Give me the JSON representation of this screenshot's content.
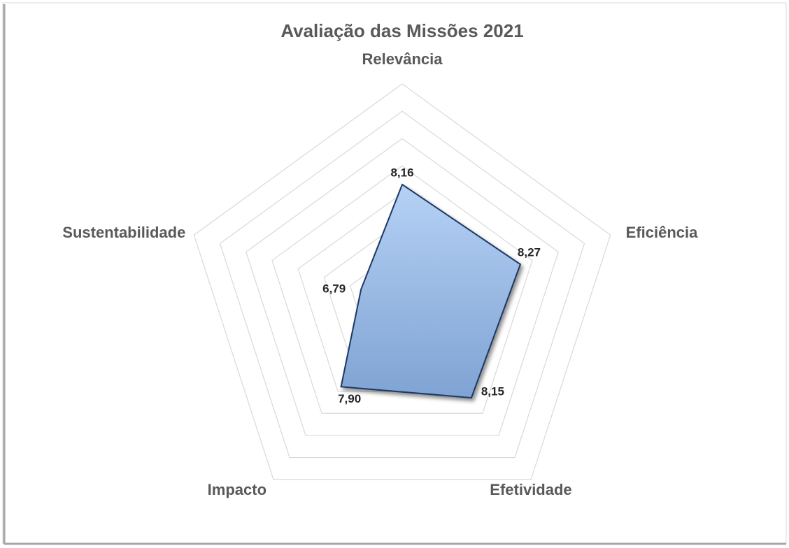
{
  "chart_data": {
    "type": "radar",
    "title": "Avaliação das Missões 2021",
    "categories": [
      "Relevância",
      "Eficiência",
      "Efetividade",
      "Impacto",
      "Sustentabilidade"
    ],
    "values": [
      8.16,
      8.27,
      8.15,
      7.9,
      6.79
    ],
    "value_labels": [
      "8,16",
      "8,27",
      "8,15",
      "7,90",
      "6,79"
    ],
    "color": "#8fb4e3",
    "ylim": [
      6,
      10
    ],
    "yticks": [
      6,
      6.5,
      7,
      7.5,
      8,
      8.5,
      9,
      9.5,
      10
    ],
    "grid": true
  }
}
